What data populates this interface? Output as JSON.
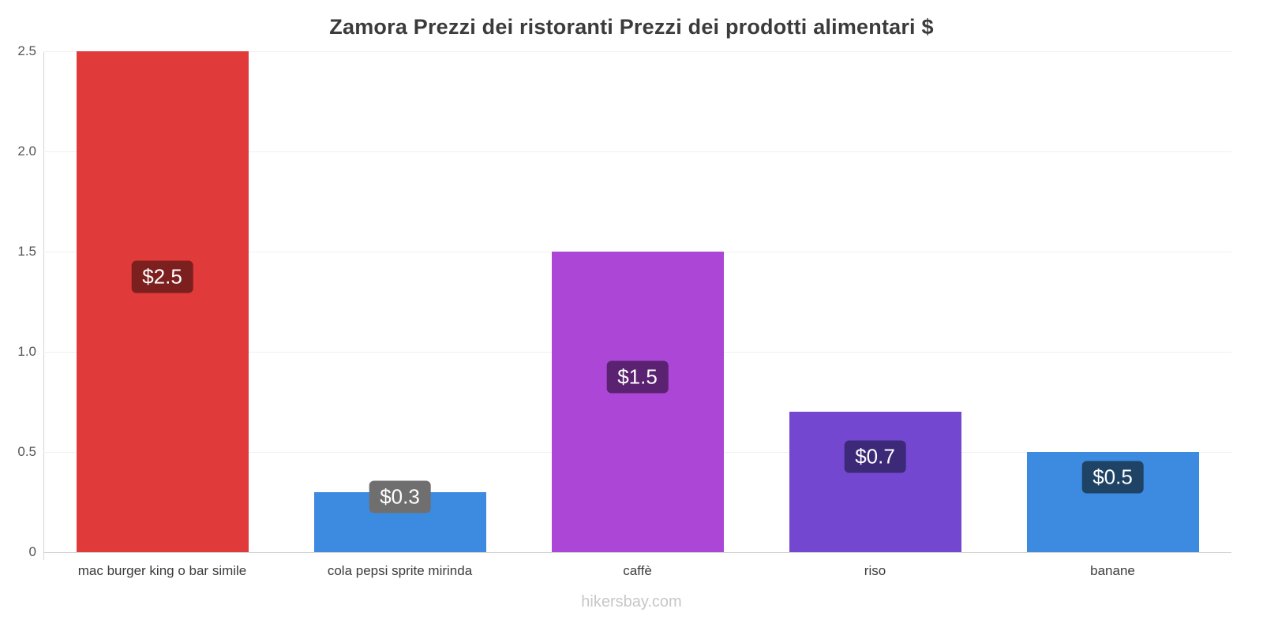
{
  "title": "Zamora Prezzi dei ristoranti Prezzi dei prodotti alimentari $",
  "footer": "hikersbay.com",
  "chart_data": {
    "type": "bar",
    "title": "Zamora Prezzi dei ristoranti Prezzi dei prodotti alimentari $",
    "categories": [
      "mac burger king o bar simile",
      "cola pepsi sprite mirinda",
      "caffè",
      "riso",
      "banane"
    ],
    "values": [
      2.5,
      0.3,
      1.5,
      0.7,
      0.5
    ],
    "value_labels": [
      "$2.5",
      "$0.3",
      "$1.5",
      "$0.7",
      "$0.5"
    ],
    "bar_colors": [
      "#e13a3a",
      "#3d8be0",
      "#ab46d6",
      "#7447d0",
      "#3d8be0"
    ],
    "label_bg_colors": [
      "#7c1f1f",
      "#6f6f6f",
      "#5a2270",
      "#3c2a78",
      "#1f4365"
    ],
    "currency": "$",
    "xlabel": "",
    "ylabel": "",
    "ylim": [
      0,
      2.5
    ],
    "yticks": [
      0,
      0.5,
      1,
      1.5,
      2,
      2.5
    ],
    "ytick_labels": [
      "0",
      "0.5",
      "1.0",
      "1.5",
      "2.0",
      "2.5"
    ],
    "grid": true,
    "legend": false,
    "watermark": "hikersbay.com"
  }
}
